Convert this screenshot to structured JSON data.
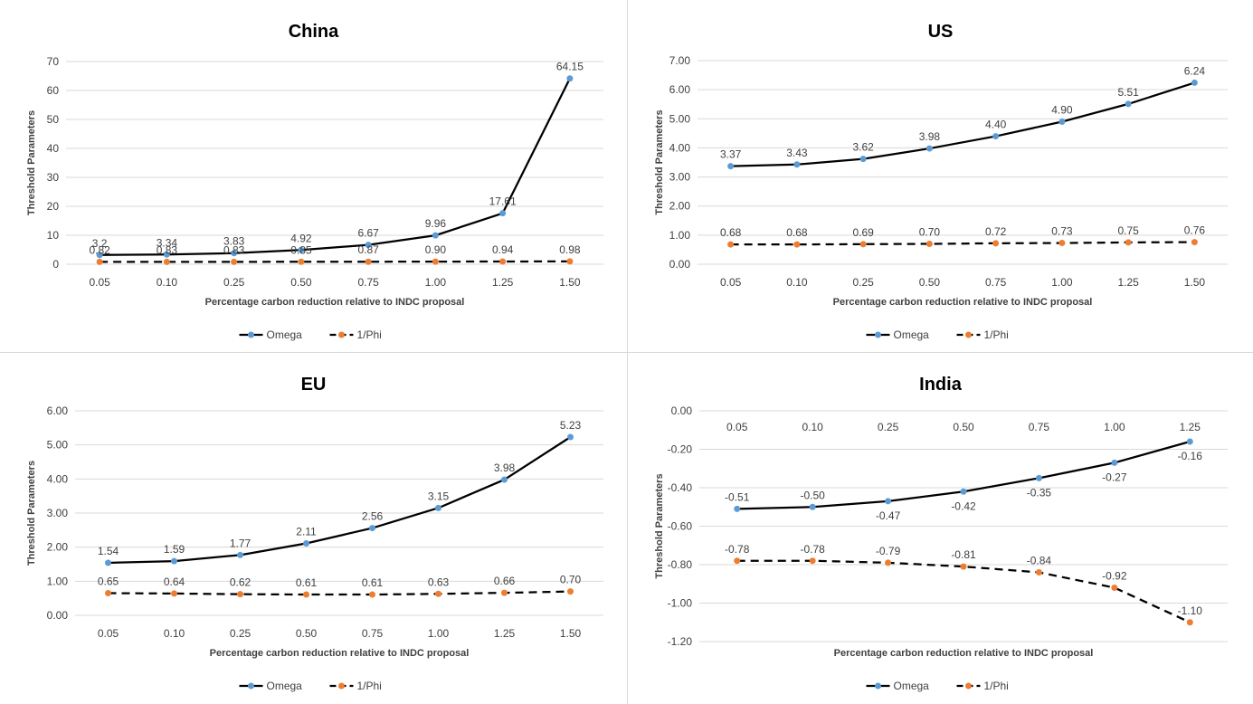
{
  "chart_data": [
    {
      "type": "line",
      "title": "China",
      "xlabel": "Percentage carbon  reduction relative to INDC proposal",
      "ylabel": "Threshold Parameters",
      "categories": [
        "0.05",
        "0.10",
        "0.25",
        "0.50",
        "0.75",
        "1.00",
        "1.25",
        "1.50"
      ],
      "ylim": [
        0,
        70
      ],
      "yticks": [
        "0",
        "10",
        "20",
        "30",
        "40",
        "50",
        "60",
        "70"
      ],
      "category_axis_at": "bottom",
      "series": [
        {
          "name": "Omega",
          "values": [
            3.2,
            3.34,
            3.83,
            4.92,
            6.67,
            9.96,
            17.61,
            64.15
          ],
          "labels": [
            "3.2",
            "3.34",
            "3.83",
            "4.92",
            "6.67",
            "9.96",
            "17.61",
            "64.15"
          ],
          "line_color": "#000000",
          "marker_color": "#5b9bd5",
          "dash": false,
          "label_pos": "above"
        },
        {
          "name": "1/Phi",
          "values": [
            0.82,
            0.83,
            0.83,
            0.85,
            0.87,
            0.9,
            0.94,
            0.98
          ],
          "labels": [
            "0.82",
            "0.83",
            "0.83",
            "0.85",
            "0.87",
            "0.90",
            "0.94",
            "0.98"
          ],
          "line_color": "#000000",
          "marker_color": "#ed7d31",
          "dash": true,
          "label_pos": "above"
        }
      ],
      "legend_position": "bottom"
    },
    {
      "type": "line",
      "title": "US",
      "xlabel": "Percentage carbon  reduction relative to INDC proposal",
      "ylabel": "Threshold Parameters",
      "categories": [
        "0.05",
        "0.10",
        "0.25",
        "0.50",
        "0.75",
        "1.00",
        "1.25",
        "1.50"
      ],
      "ylim": [
        0,
        7
      ],
      "yticks": [
        "0.00",
        "1.00",
        "2.00",
        "3.00",
        "4.00",
        "5.00",
        "6.00",
        "7.00"
      ],
      "category_axis_at": "bottom",
      "series": [
        {
          "name": "Omega",
          "values": [
            3.37,
            3.43,
            3.62,
            3.98,
            4.4,
            4.9,
            5.51,
            6.24
          ],
          "labels": [
            "3.37",
            "3.43",
            "3.62",
            "3.98",
            "4.40",
            "4.90",
            "5.51",
            "6.24"
          ],
          "line_color": "#000000",
          "marker_color": "#5b9bd5",
          "dash": false,
          "label_pos": "above"
        },
        {
          "name": "1/Phi",
          "values": [
            0.68,
            0.68,
            0.69,
            0.7,
            0.72,
            0.73,
            0.75,
            0.76
          ],
          "labels": [
            "0.68",
            "0.68",
            "0.69",
            "0.70",
            "0.72",
            "0.73",
            "0.75",
            "0.76"
          ],
          "line_color": "#000000",
          "marker_color": "#ed7d31",
          "dash": true,
          "label_pos": "above"
        }
      ],
      "legend_position": "bottom"
    },
    {
      "type": "line",
      "title": "EU",
      "xlabel": "Percentage carbon  reduction relative to INDC proposal",
      "ylabel": "Threshold Parameters",
      "categories": [
        "0.05",
        "0.10",
        "0.25",
        "0.50",
        "0.75",
        "1.00",
        "1.25",
        "1.50"
      ],
      "ylim": [
        0,
        6
      ],
      "yticks": [
        "0.00",
        "1.00",
        "2.00",
        "3.00",
        "4.00",
        "5.00",
        "6.00"
      ],
      "category_axis_at": "bottom",
      "series": [
        {
          "name": "Omega",
          "values": [
            1.54,
            1.59,
            1.77,
            2.11,
            2.56,
            3.15,
            3.98,
            5.23
          ],
          "labels": [
            "1.54",
            "1.59",
            "1.77",
            "2.11",
            "2.56",
            "3.15",
            "3.98",
            "5.23"
          ],
          "line_color": "#000000",
          "marker_color": "#5b9bd5",
          "dash": false,
          "label_pos": "above"
        },
        {
          "name": "1/Phi",
          "values": [
            0.65,
            0.64,
            0.62,
            0.61,
            0.61,
            0.63,
            0.66,
            0.7
          ],
          "labels": [
            "0.65",
            "0.64",
            "0.62",
            "0.61",
            "0.61",
            "0.63",
            "0.66",
            "0.70"
          ],
          "line_color": "#000000",
          "marker_color": "#ed7d31",
          "dash": true,
          "label_pos": "above"
        }
      ],
      "legend_position": "bottom"
    },
    {
      "type": "line",
      "title": "India",
      "xlabel": "Percentage carbon  reduction relative to INDC proposal",
      "ylabel": "Threshold Parameters",
      "categories": [
        "0.05",
        "0.10",
        "0.25",
        "0.50",
        "0.75",
        "1.00",
        "1.25"
      ],
      "ylim": [
        -1.2,
        0
      ],
      "yticks": [
        "-1.20",
        "-1.00",
        "-0.80",
        "-0.60",
        "-0.40",
        "-0.20",
        "0.00"
      ],
      "category_axis_at": "top",
      "series": [
        {
          "name": "Omega",
          "values": [
            -0.51,
            -0.5,
            -0.47,
            -0.42,
            -0.35,
            -0.27,
            -0.16
          ],
          "labels": [
            "-0.51",
            "-0.50",
            "-0.47",
            "-0.42",
            "-0.35",
            "-0.27",
            "-0.16"
          ],
          "line_color": "#000000",
          "marker_color": "#5b9bd5",
          "dash": false,
          "label_pos": [
            "above",
            "above",
            "below",
            "below",
            "below",
            "below",
            "below"
          ]
        },
        {
          "name": "1/Phi",
          "values": [
            -0.78,
            -0.78,
            -0.79,
            -0.81,
            -0.84,
            -0.92,
            -1.1
          ],
          "labels": [
            "-0.78",
            "-0.78",
            "-0.79",
            "-0.81",
            "-0.84",
            "-0.92",
            "-1.10"
          ],
          "line_color": "#000000",
          "marker_color": "#ed7d31",
          "dash": true,
          "label_pos": "above"
        }
      ],
      "legend_position": "bottom"
    }
  ]
}
